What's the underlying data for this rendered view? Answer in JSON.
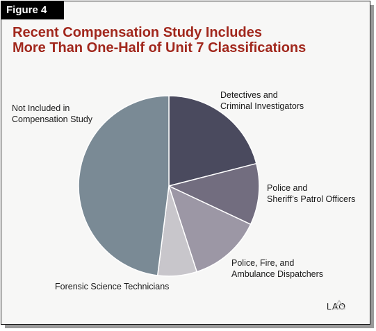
{
  "figure_label": "Figure 4",
  "title_lines": [
    "Recent Compensation Study Includes",
    "More Than One-Half of Unit 7 Classifications"
  ],
  "logo_text": "LAO",
  "chart_data": {
    "type": "pie",
    "title": "Recent Compensation Study Includes More Than One-Half of Unit 7 Classifications",
    "start_angle_deg": 0,
    "direction": "clockwise",
    "slices": [
      {
        "label_lines": [
          "Detectives and",
          "Criminal Investigators"
        ],
        "value": 21,
        "color": "#4a4a5e"
      },
      {
        "label_lines": [
          "Police and",
          "Sheriff’s Patrol Officers"
        ],
        "value": 11,
        "color": "#726d7f"
      },
      {
        "label_lines": [
          "Police, Fire, and",
          "Ambulance Dispatchers"
        ],
        "value": 13,
        "color": "#9c97a5"
      },
      {
        "label_lines": [
          "Forensic Science Technicians"
        ],
        "value": 7,
        "color": "#c8c6cb"
      },
      {
        "label_lines": [
          "Not Included in",
          "Compensation Study"
        ],
        "value": 48,
        "color": "#7a8a95"
      }
    ]
  }
}
